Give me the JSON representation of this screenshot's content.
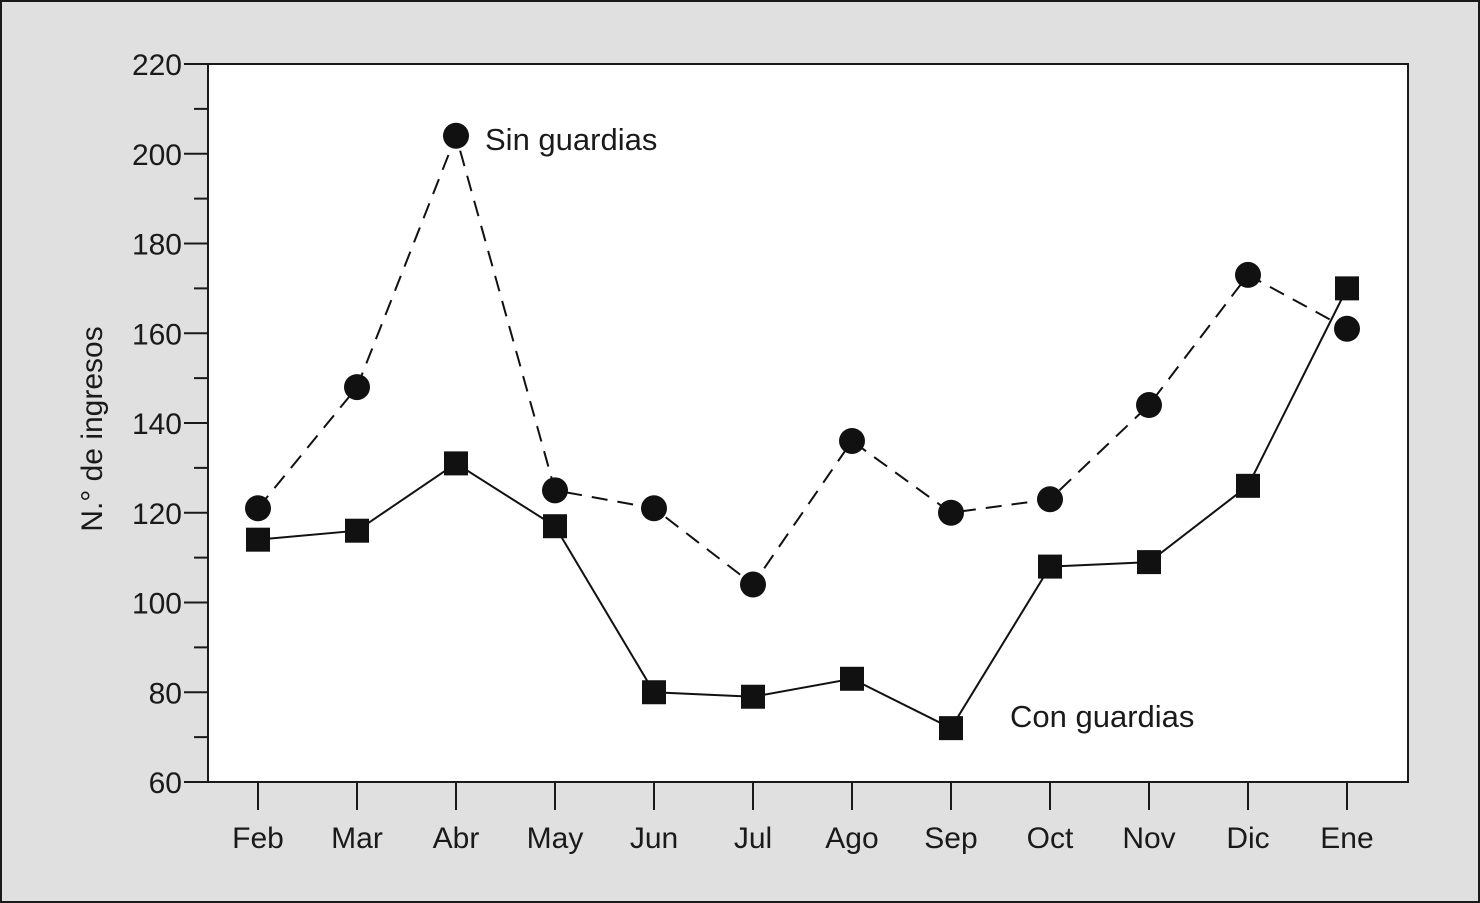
{
  "chart_data": {
    "type": "line",
    "ylabel": "N.° de ingresos",
    "xlabel": "",
    "ylim": [
      60,
      220
    ],
    "yticks": [
      60,
      80,
      100,
      120,
      140,
      160,
      180,
      200,
      220
    ],
    "categories": [
      "Feb",
      "Mar",
      "Abr",
      "May",
      "Jun",
      "Jul",
      "Ago",
      "Sep",
      "Oct",
      "Nov",
      "Dic",
      "Ene"
    ],
    "series": [
      {
        "name": "Sin guardias",
        "marker": "circle",
        "line_style": "dashed",
        "color": "#111111",
        "values": [
          121,
          148,
          204,
          125,
          121,
          104,
          136,
          120,
          123,
          144,
          173,
          161
        ]
      },
      {
        "name": "Con guardias",
        "marker": "square",
        "line_style": "solid",
        "color": "#111111",
        "values": [
          114,
          116,
          131,
          117,
          80,
          79,
          83,
          72,
          108,
          109,
          126,
          170
        ]
      }
    ],
    "grid": false,
    "background_color": "#ffffff",
    "frame_color": "#e0e0e0"
  }
}
